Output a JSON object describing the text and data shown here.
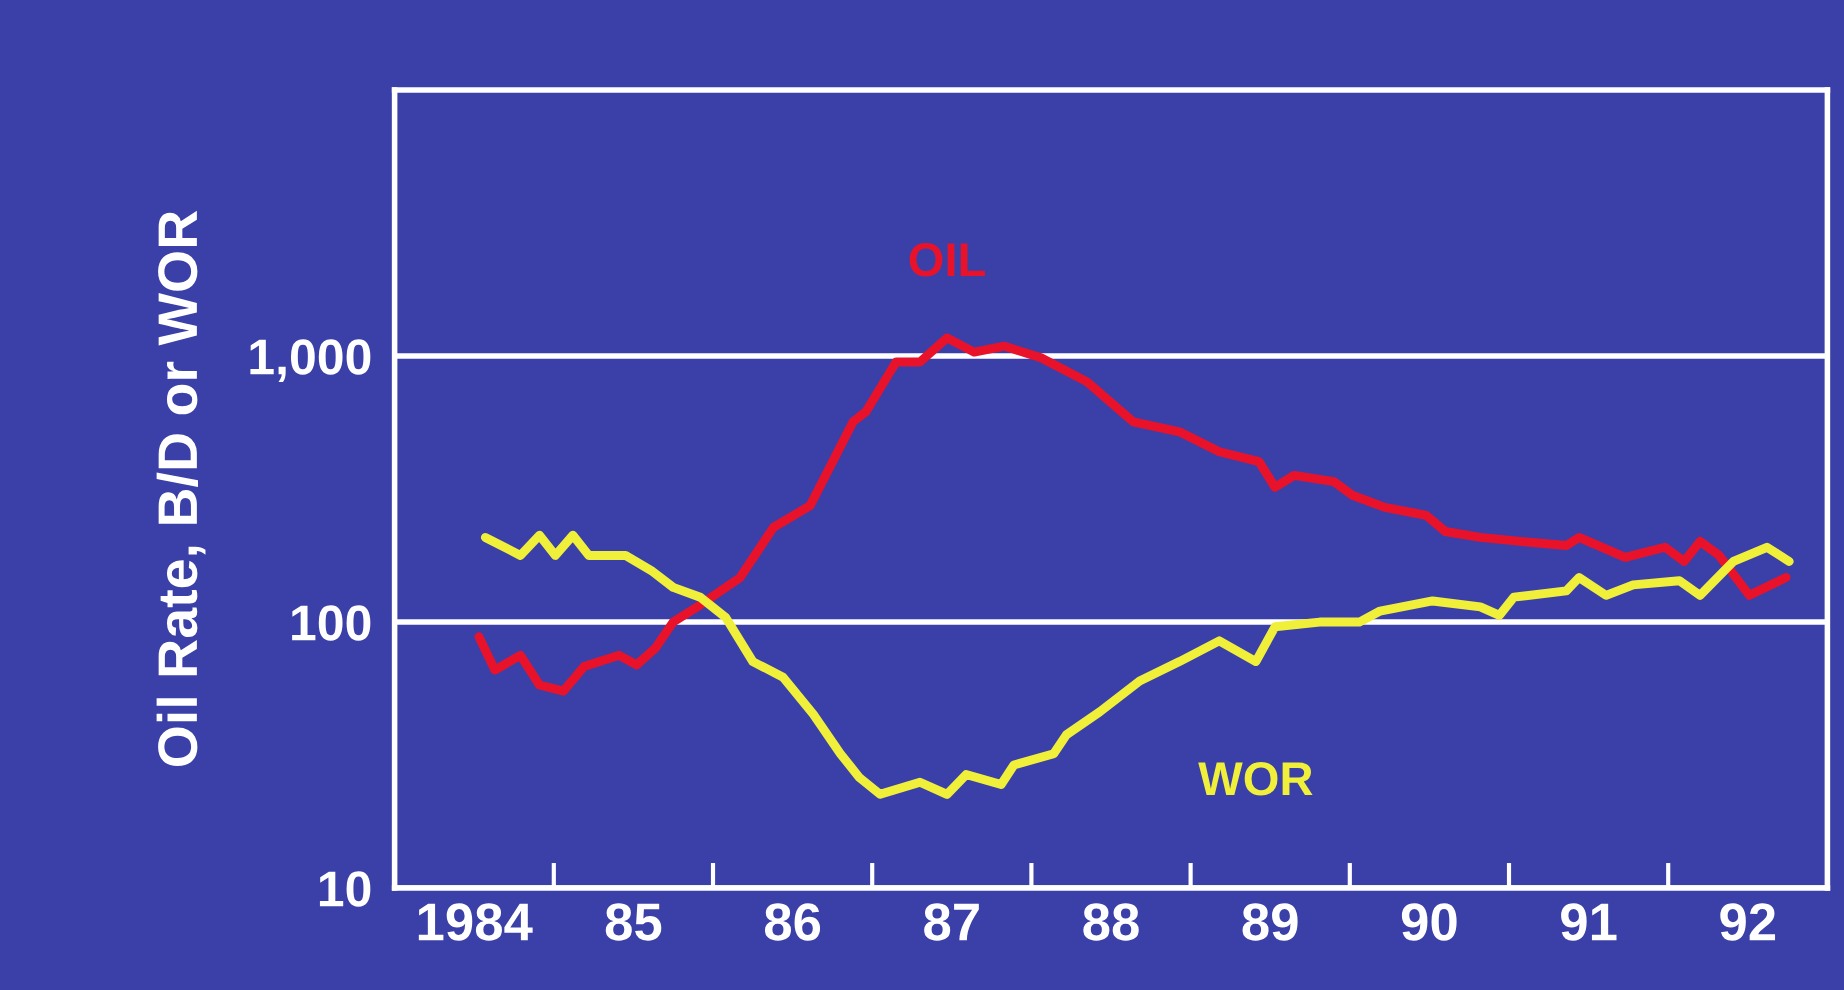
{
  "chart_data": {
    "type": "line",
    "ylabel": "Oil Rate, B/D or WOR",
    "log": "y",
    "grid": "y",
    "legend": false,
    "marker": "none",
    "line_style": "solid",
    "xlim": [
      1983.5,
      1992.5
    ],
    "ylim": [
      10,
      10000
    ],
    "xticks": [
      {
        "value": 1984,
        "label": "1984"
      },
      {
        "value": 1984.5,
        "label": null
      },
      {
        "value": 1985,
        "label": "85"
      },
      {
        "value": 1985.5,
        "label": null
      },
      {
        "value": 1986,
        "label": "86"
      },
      {
        "value": 1986.5,
        "label": null
      },
      {
        "value": 1987,
        "label": "87"
      },
      {
        "value": 1987.5,
        "label": null
      },
      {
        "value": 1988,
        "label": "88"
      },
      {
        "value": 1988.5,
        "label": null
      },
      {
        "value": 1989,
        "label": "89"
      },
      {
        "value": 1989.5,
        "label": null
      },
      {
        "value": 1990,
        "label": "90"
      },
      {
        "value": 1990.5,
        "label": null
      },
      {
        "value": 1991,
        "label": "91"
      },
      {
        "value": 1991.5,
        "label": null
      },
      {
        "value": 1992,
        "label": "92"
      }
    ],
    "yticks": [
      10,
      100,
      {
        "value": 1000,
        "label": "1,000"
      }
    ],
    "series": [
      {
        "name": "OIL",
        "color": "#e8132a",
        "x": [
          1984.03,
          1984.13,
          1984.29,
          1984.41,
          1984.56,
          1984.69,
          1984.91,
          1985.02,
          1985.14,
          1985.25,
          1985.42,
          1985.67,
          1985.88,
          1986.11,
          1986.38,
          1986.46,
          1986.65,
          1986.8,
          1986.97,
          1987.14,
          1987.33,
          1987.56,
          1987.85,
          1988.14,
          1988.43,
          1988.68,
          1988.93,
          1989.03,
          1989.15,
          1989.4,
          1989.52,
          1989.72,
          1989.98,
          1990.1,
          1990.32,
          1990.57,
          1990.86,
          1990.94,
          1991.23,
          1991.48,
          1991.6,
          1991.7,
          1991.82,
          1992.01,
          1992.24
        ],
        "values": [
          88,
          66,
          75,
          58,
          55,
          68,
          75,
          69,
          80,
          100,
          116,
          147,
          227,
          274,
          566,
          617,
          950,
          950,
          1170,
          1035,
          1090,
          985,
          800,
          566,
          519,
          437,
          401,
          321,
          356,
          337,
          299,
          270,
          252,
          219,
          208,
          201,
          194,
          208,
          175,
          191,
          169,
          201,
          178,
          126,
          147
        ]
      },
      {
        "name": "WOR",
        "color": "#f0ef3a",
        "x": [
          1984.07,
          1984.29,
          1984.41,
          1984.51,
          1984.62,
          1984.72,
          1984.95,
          1985.12,
          1985.25,
          1985.42,
          1985.58,
          1985.75,
          1985.94,
          1986.13,
          1986.3,
          1986.42,
          1986.55,
          1986.8,
          1986.97,
          1987.09,
          1987.31,
          1987.39,
          1987.64,
          1987.72,
          1987.93,
          1988.18,
          1988.43,
          1988.68,
          1988.91,
          1989.03,
          1989.31,
          1989.56,
          1989.69,
          1990.02,
          1990.32,
          1990.44,
          1990.53,
          1990.86,
          1990.94,
          1991.11,
          1991.28,
          1991.57,
          1991.7,
          1991.91,
          1992.12,
          1992.26
        ],
        "values": [
          208,
          178,
          212,
          178,
          212,
          178,
          178,
          155,
          135,
          124,
          104,
          71,
          62,
          45,
          32,
          26,
          22.5,
          25,
          22.5,
          26.7,
          24.5,
          29,
          32,
          37.7,
          46,
          60,
          71,
          85,
          71,
          96,
          100,
          100,
          110,
          120,
          114,
          106,
          124,
          131,
          147,
          126,
          138,
          143,
          126,
          169,
          191,
          169
        ]
      }
    ]
  }
}
